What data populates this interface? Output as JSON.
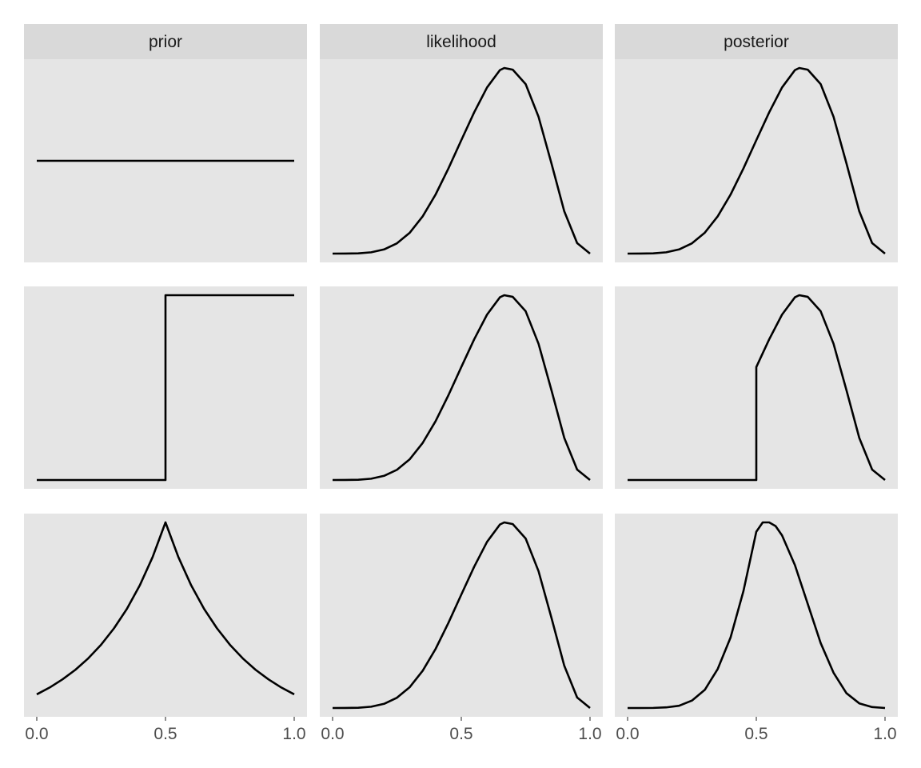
{
  "chart_data": {
    "type": "line",
    "layout": "facet_grid",
    "columns": [
      "prior",
      "likelihood",
      "posterior"
    ],
    "rows": 3,
    "xlim": [
      0,
      1
    ],
    "x_ticks": [
      "0.0",
      "0.5",
      "1.0"
    ],
    "y_axis_shown": false,
    "grid": false,
    "panel_background": "#e5e5e5",
    "strip_background": "#d9d9d9",
    "line_color": "#000000",
    "panels": [
      {
        "row": 1,
        "column": "prior",
        "x": [
          0,
          0.1,
          0.2,
          0.3,
          0.4,
          0.5,
          0.6,
          0.7,
          0.8,
          0.9,
          1
        ],
        "y": [
          0.5,
          0.5,
          0.5,
          0.5,
          0.5,
          0.5,
          0.5,
          0.5,
          0.5,
          0.5,
          0.5
        ]
      },
      {
        "row": 1,
        "column": "likelihood",
        "x": [
          0,
          0.05,
          0.1,
          0.15,
          0.2,
          0.25,
          0.3,
          0.35,
          0.4,
          0.45,
          0.5,
          0.55,
          0.6,
          0.65,
          0.667,
          0.7,
          0.75,
          0.8,
          0.85,
          0.9,
          0.95,
          1
        ],
        "y": [
          0,
          6e-05,
          0.0011,
          0.0062,
          0.02,
          0.049,
          0.1,
          0.178,
          0.282,
          0.407,
          0.542,
          0.675,
          0.794,
          0.877,
          0.887,
          0.879,
          0.81,
          0.654,
          0.432,
          0.202,
          0.05,
          0
        ]
      },
      {
        "row": 1,
        "column": "posterior",
        "x": [
          0,
          0.05,
          0.1,
          0.15,
          0.2,
          0.25,
          0.3,
          0.35,
          0.4,
          0.45,
          0.5,
          0.55,
          0.6,
          0.65,
          0.667,
          0.7,
          0.75,
          0.8,
          0.85,
          0.9,
          0.95,
          1
        ],
        "y": [
          0,
          6e-05,
          0.0011,
          0.0062,
          0.02,
          0.049,
          0.1,
          0.178,
          0.282,
          0.407,
          0.542,
          0.675,
          0.794,
          0.877,
          0.887,
          0.879,
          0.81,
          0.654,
          0.432,
          0.202,
          0.05,
          0
        ]
      },
      {
        "row": 2,
        "column": "prior",
        "x": [
          0,
          0.5,
          0.5,
          1
        ],
        "y": [
          0,
          0,
          1,
          1
        ]
      },
      {
        "row": 2,
        "column": "likelihood",
        "x": [
          0,
          0.05,
          0.1,
          0.15,
          0.2,
          0.25,
          0.3,
          0.35,
          0.4,
          0.45,
          0.5,
          0.55,
          0.6,
          0.65,
          0.667,
          0.7,
          0.75,
          0.8,
          0.85,
          0.9,
          0.95,
          1
        ],
        "y": [
          0,
          6e-05,
          0.0011,
          0.0062,
          0.02,
          0.049,
          0.1,
          0.178,
          0.282,
          0.407,
          0.542,
          0.675,
          0.794,
          0.877,
          0.887,
          0.879,
          0.81,
          0.654,
          0.432,
          0.202,
          0.05,
          0
        ]
      },
      {
        "row": 2,
        "column": "posterior",
        "x": [
          0,
          0.5,
          0.5,
          0.55,
          0.6,
          0.65,
          0.667,
          0.7,
          0.75,
          0.8,
          0.85,
          0.9,
          0.95,
          1
        ],
        "y": [
          0,
          0,
          0.542,
          0.675,
          0.794,
          0.877,
          0.887,
          0.879,
          0.81,
          0.654,
          0.432,
          0.202,
          0.05,
          0
        ]
      },
      {
        "row": 3,
        "column": "prior",
        "x": [
          0,
          0.05,
          0.1,
          0.15,
          0.2,
          0.25,
          0.3,
          0.35,
          0.4,
          0.45,
          0.5,
          0.55,
          0.6,
          0.65,
          0.7,
          0.75,
          0.8,
          0.85,
          0.9,
          0.95,
          1
        ],
        "y": [
          0.05,
          0.075,
          0.105,
          0.14,
          0.182,
          0.232,
          0.292,
          0.363,
          0.449,
          0.553,
          0.68,
          0.553,
          0.449,
          0.363,
          0.292,
          0.232,
          0.182,
          0.14,
          0.105,
          0.075,
          0.05
        ]
      },
      {
        "row": 3,
        "column": "likelihood",
        "x": [
          0,
          0.05,
          0.1,
          0.15,
          0.2,
          0.25,
          0.3,
          0.35,
          0.4,
          0.45,
          0.5,
          0.55,
          0.6,
          0.65,
          0.667,
          0.7,
          0.75,
          0.8,
          0.85,
          0.9,
          0.95,
          1
        ],
        "y": [
          0,
          6e-05,
          0.0011,
          0.0062,
          0.02,
          0.049,
          0.1,
          0.178,
          0.282,
          0.407,
          0.542,
          0.675,
          0.794,
          0.877,
          0.887,
          0.879,
          0.81,
          0.654,
          0.432,
          0.202,
          0.05,
          0
        ]
      },
      {
        "row": 3,
        "column": "posterior",
        "x": [
          0,
          0.05,
          0.1,
          0.15,
          0.2,
          0.25,
          0.3,
          0.35,
          0.4,
          0.45,
          0.5,
          0.525,
          0.55,
          0.575,
          0.6,
          0.65,
          0.7,
          0.75,
          0.8,
          0.85,
          0.9,
          0.95,
          1
        ],
        "y": [
          0,
          1e-05,
          0.0005,
          0.0033,
          0.012,
          0.04,
          0.098,
          0.21,
          0.38,
          0.63,
          0.95,
          1.0,
          1.0,
          0.98,
          0.93,
          0.77,
          0.56,
          0.35,
          0.19,
          0.08,
          0.025,
          0.005,
          0
        ]
      }
    ]
  }
}
